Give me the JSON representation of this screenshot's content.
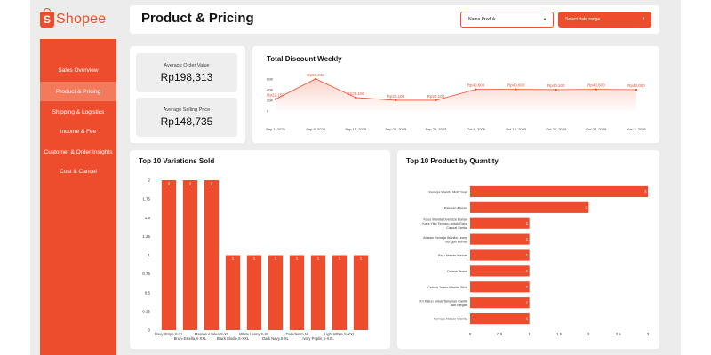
{
  "brand": {
    "name": "Shopee",
    "mark": "S"
  },
  "header": {
    "title": "Product & Pricing",
    "product_dropdown": "Nama Produk",
    "date_dropdown": "Select date range"
  },
  "sidebar": {
    "items": [
      {
        "label": "Sales Overview",
        "active": false
      },
      {
        "label": "Product & Pricing",
        "active": true
      },
      {
        "label": "Shipping & Logistics",
        "active": false
      },
      {
        "label": "Income & Fee",
        "active": false
      },
      {
        "label": "Customer & Order Insights",
        "active": false
      },
      {
        "label": "Cost & Cancel",
        "active": false
      }
    ]
  },
  "kpis": {
    "avg_order_label": "Average Order Value",
    "avg_order_value": "Rp198,313",
    "avg_price_label": "Average Selling Price",
    "avg_price_value": "Rp148,735"
  },
  "colors": {
    "accent": "#ee4d2d",
    "accent_light": "#f47a5e",
    "background": "#ececec"
  },
  "chart_data": [
    {
      "type": "area",
      "title": "Total Discount Weekly",
      "x": [
        "Sep 1, 2025",
        "Sep 8, 2025",
        "Sep 15, 2025",
        "Sep 22, 2025",
        "Sep 29, 2025",
        "Oct 6, 2025",
        "Oct 13, 2025",
        "Oct 20, 2025",
        "Oct 27, 2025",
        "Nov 3, 2025"
      ],
      "x_ticks": [
        "Sep 1, 2025",
        "Sep 8, 2025",
        "Sep 15, 2025",
        "Sep 22, 2025",
        "Sep 29, 2025",
        "Oct 6, 2025",
        "Oct 13, 2025",
        "Oct 20, 2025",
        "Oct 27, 2025",
        "Nov 3, 2025"
      ],
      "values": [
        22150,
        60210,
        25100,
        20100,
        20100,
        40600,
        40600,
        40100,
        40600,
        40000
      ],
      "labels": [
        "Rp22,150",
        "Rp60,210",
        "Rp25,100",
        "Rp20,100",
        "Rp20,100",
        "Rp40,600",
        "Rp40,600",
        "Rp40,100",
        "Rp40,600",
        "Rp40,000"
      ],
      "y_ticks": [
        "0",
        "20K",
        "40K",
        "60K"
      ],
      "ylim": [
        0,
        60000
      ]
    },
    {
      "type": "bar",
      "title": "Top 10 Variations Sold",
      "categories": [
        "Navy Stripe,S-XL",
        "Bruni Estella,S-XXL",
        "Maroon Azalea,S-XL",
        "Black Elodie,S-XXL",
        "White Leony,S-XL",
        "Dark Navy,S-XL",
        "Darkdenim,M",
        "Ivory Poplin,S-XXL",
        "Light White,S-XXL",
        ""
      ],
      "values": [
        2,
        2,
        2,
        1,
        1,
        1,
        1,
        1,
        1,
        1
      ],
      "y_ticks": [
        "0",
        "0.25",
        "0.5",
        "0.75",
        "1",
        "1.25",
        "1.5",
        "1.75",
        "2"
      ],
      "ylim": [
        0,
        2
      ]
    },
    {
      "type": "bar",
      "orientation": "horizontal",
      "title": "Top 10 Product by Quantity",
      "categories": [
        [
          "Kemeja Wanita Motif Supi"
        ],
        [
          "Pakaian Atasan"
        ],
        [
          "Kaos Wanita Oversize Bahan",
          "Kara Yiko Terbaru untuk Gaya",
          "Casual Santai"
        ],
        [
          "Atasan Kemeja Wanita Leony",
          "dengan Bahan"
        ],
        [
          "Baju Atasan Kaolas"
        ],
        [
          "Celana Jeans"
        ],
        [
          "Celana Jeans Wanita Slick"
        ],
        [
          "Xri Katun untuk Tampilan Cantik",
          "dan Elegan"
        ],
        [
          "Kemeja Atasan Wanita"
        ]
      ],
      "values": [
        3,
        2,
        1,
        1,
        1,
        1,
        1,
        1,
        1
      ],
      "x_ticks": [
        "0",
        "0.5",
        "1",
        "1.5",
        "2",
        "2.5",
        "3"
      ],
      "xlim": [
        0,
        3
      ]
    }
  ]
}
